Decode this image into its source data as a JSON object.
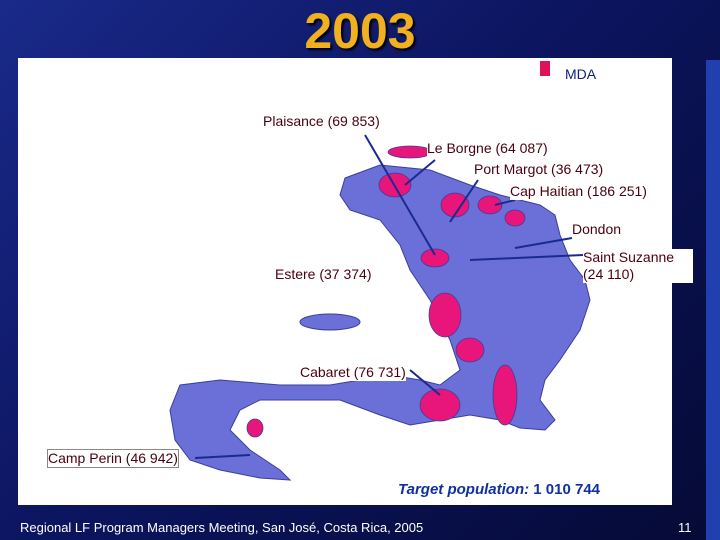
{
  "header": {
    "title": "2003"
  },
  "legend": {
    "label": "MDA"
  },
  "map_labels": [
    "Plaisance (69 853)",
    "Le Borgne (64 087)",
    "Port Margot (36 473)",
    "Cap Haitian (186 251)",
    "Dondon",
    "Saint Suzanne (24 110)",
    "Estere (37 374)",
    "Cabaret (76 731)",
    "Camp Perin (46 942)"
  ],
  "target": {
    "label": "Target population:",
    "value": "1 010 744"
  },
  "footer": {
    "text": "Regional LF Program Managers Meeting, San José, Costa Rica, 2005",
    "page_number": 11
  }
}
